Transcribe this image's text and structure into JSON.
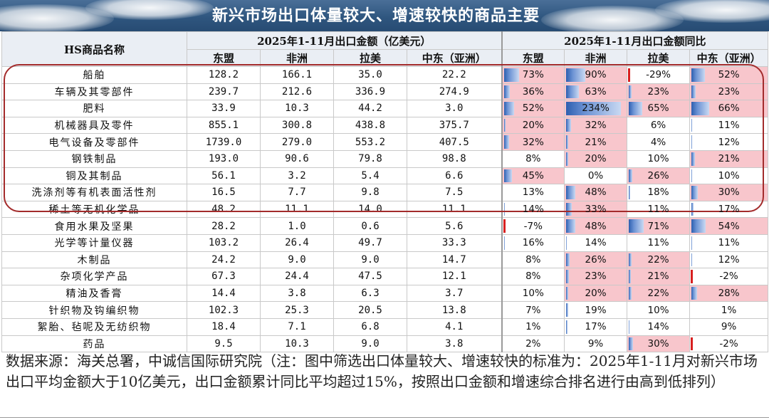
{
  "title": "新兴市场出口体量较大、增速较快的商品主要",
  "header": {
    "name_col": "HS商品名称",
    "amount_group": "2025年1-11月出口金额（亿美元）",
    "yoy_group": "2025年1-11月出口金额同比",
    "regions": [
      "东盟",
      "非洲",
      "拉美",
      "中东（亚洲）"
    ]
  },
  "rows": [
    {
      "name": "船舶",
      "amount": [
        "128.2",
        "166.1",
        "35.0",
        "22.2"
      ],
      "yoy": [
        "73%",
        "90%",
        "-29%",
        "52%"
      ],
      "yoy_values": [
        73,
        90,
        -29,
        52
      ]
    },
    {
      "name": "车辆及其零部件",
      "amount": [
        "239.7",
        "212.6",
        "336.9",
        "274.9"
      ],
      "yoy": [
        "36%",
        "63%",
        "23%",
        "23%"
      ],
      "yoy_values": [
        36,
        63,
        23,
        23
      ]
    },
    {
      "name": "肥料",
      "amount": [
        "33.9",
        "10.3",
        "44.2",
        "3.0"
      ],
      "yoy": [
        "52%",
        "234%",
        "65%",
        "66%"
      ],
      "yoy_values": [
        52,
        234,
        65,
        66
      ]
    },
    {
      "name": "机械器具及零件",
      "amount": [
        "855.1",
        "300.8",
        "438.8",
        "375.7"
      ],
      "yoy": [
        "20%",
        "32%",
        "6%",
        "11%"
      ],
      "yoy_values": [
        20,
        32,
        6,
        11
      ]
    },
    {
      "name": "电气设备及零部件",
      "amount": [
        "1739.0",
        "279.0",
        "553.2",
        "407.5"
      ],
      "yoy": [
        "32%",
        "21%",
        "4%",
        "12%"
      ],
      "yoy_values": [
        32,
        21,
        4,
        12
      ]
    },
    {
      "name": "钢铁制品",
      "amount": [
        "193.0",
        "90.6",
        "79.8",
        "98.8"
      ],
      "yoy": [
        "8%",
        "20%",
        "10%",
        "21%"
      ],
      "yoy_values": [
        8,
        20,
        10,
        21
      ]
    },
    {
      "name": "铜及其制品",
      "amount": [
        "56.1",
        "3.2",
        "5.4",
        "6.6"
      ],
      "yoy": [
        "45%",
        "0%",
        "26%",
        "10%"
      ],
      "yoy_values": [
        45,
        0,
        26,
        10
      ]
    },
    {
      "name": "洗涤剂等有机表面活性剂",
      "amount": [
        "16.5",
        "7.7",
        "9.8",
        "7.5"
      ],
      "yoy": [
        "13%",
        "48%",
        "18%",
        "30%"
      ],
      "yoy_values": [
        13,
        48,
        18,
        30
      ]
    },
    {
      "name": "稀土等无机化学品",
      "amount": [
        "48.2",
        "11.1",
        "14.0",
        "11.1"
      ],
      "yoy": [
        "14%",
        "33%",
        "11%",
        "17%"
      ],
      "yoy_values": [
        14,
        33,
        11,
        17
      ]
    },
    {
      "name": "食用水果及坚果",
      "amount": [
        "28.2",
        "1.0",
        "0.6",
        "5.6"
      ],
      "yoy": [
        "-7%",
        "48%",
        "71%",
        "54%"
      ],
      "yoy_values": [
        -7,
        48,
        71,
        54
      ]
    },
    {
      "name": "光学等计量仪器",
      "amount": [
        "103.2",
        "26.4",
        "49.7",
        "33.3"
      ],
      "yoy": [
        "16%",
        "14%",
        "11%",
        "11%"
      ],
      "yoy_values": [
        16,
        14,
        11,
        11
      ]
    },
    {
      "name": "木制品",
      "amount": [
        "24.2",
        "9.0",
        "9.0",
        "14.7"
      ],
      "yoy": [
        "8%",
        "26%",
        "22%",
        "12%"
      ],
      "yoy_values": [
        8,
        26,
        22,
        12
      ]
    },
    {
      "name": "杂项化学产品",
      "amount": [
        "67.3",
        "24.4",
        "47.5",
        "12.1"
      ],
      "yoy": [
        "8%",
        "23%",
        "21%",
        "-2%"
      ],
      "yoy_values": [
        8,
        23,
        21,
        -2
      ]
    },
    {
      "name": "精油及香膏",
      "amount": [
        "14.4",
        "3.8",
        "6.3",
        "3.7"
      ],
      "yoy": [
        "10%",
        "20%",
        "22%",
        "28%"
      ],
      "yoy_values": [
        10,
        20,
        22,
        28
      ]
    },
    {
      "name": "针织物及钩编织物",
      "amount": [
        "102.3",
        "25.3",
        "20.5",
        "13.8"
      ],
      "yoy": [
        "7%",
        "19%",
        "10%",
        "1%"
      ],
      "yoy_values": [
        7,
        19,
        10,
        1
      ]
    },
    {
      "name": "絮胎、毡呢及无纺织物",
      "amount": [
        "18.4",
        "7.1",
        "6.8",
        "4.1"
      ],
      "yoy": [
        "1%",
        "17%",
        "14%",
        "9%"
      ],
      "yoy_values": [
        1,
        17,
        14,
        9
      ]
    },
    {
      "name": "药品",
      "amount": [
        "9.5",
        "10.3",
        "9.0",
        "3.8"
      ],
      "yoy": [
        "2%",
        "9%",
        "30%",
        "-2%"
      ],
      "yoy_values": [
        2,
        9,
        30,
        -2
      ]
    }
  ],
  "highlight_threshold_pct": 20,
  "colors": {
    "highlight_fill": "#f8c6cc",
    "bar": "#2d5fb0",
    "negative_bar": "#d82020",
    "box_outline": "#a32b2b",
    "title_band": "#2f567f"
  },
  "source_note": "数据来源：海关总署，中诚信国际研究院（注：图中筛选出口体量较大、增速较快的标准为：2025年1-11月对新兴市场出口平均金额大于10亿美元，出口金额累计同比平均超过15%，按照出口金额和增速综合排名进行由高到低排列）"
}
